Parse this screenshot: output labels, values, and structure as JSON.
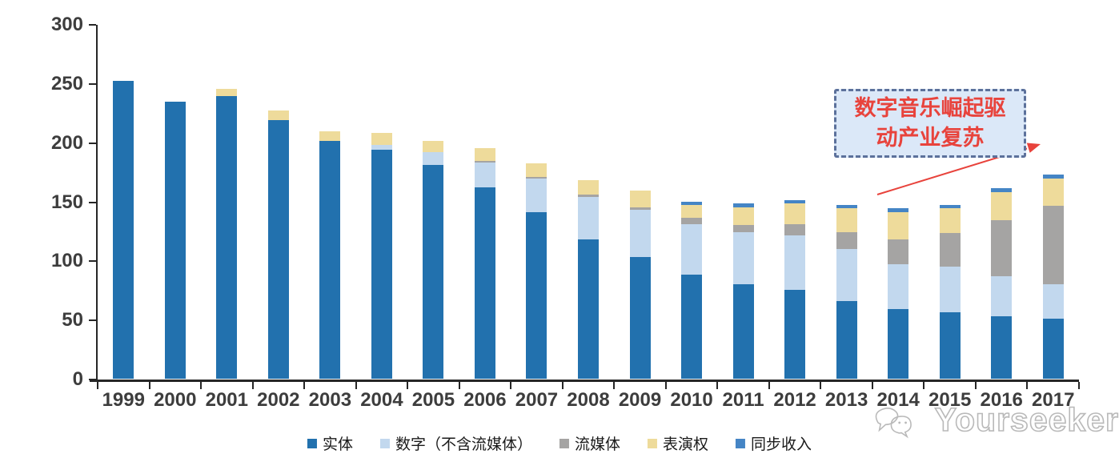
{
  "chart_data": {
    "type": "bar",
    "stacked": true,
    "title": "",
    "xlabel": "",
    "ylabel": "",
    "ylim": [
      0,
      300
    ],
    "yticks": [
      0,
      50,
      100,
      150,
      200,
      250,
      300
    ],
    "grid": false,
    "legend_position": "bottom",
    "categories": [
      "1999",
      "2000",
      "2001",
      "2002",
      "2003",
      "2004",
      "2005",
      "2006",
      "2007",
      "2008",
      "2009",
      "2010",
      "2011",
      "2012",
      "2013",
      "2014",
      "2015",
      "2016",
      "2017"
    ],
    "series": [
      {
        "name": "实体",
        "color": "#2271ae",
        "values": [
          252,
          234,
          239,
          219,
          201,
          194,
          181,
          162,
          141,
          118,
          103,
          88,
          80,
          75,
          66,
          59,
          56,
          53,
          51
        ]
      },
      {
        "name": "数字（不含流媒体）",
        "color": "#c2d8ee",
        "values": [
          0,
          0,
          0,
          0,
          0,
          4,
          11,
          21,
          28,
          36,
          40,
          43,
          44,
          46,
          44,
          38,
          39,
          34,
          29
        ]
      },
      {
        "name": "流媒体",
        "color": "#a5a4a3",
        "values": [
          0,
          0,
          0,
          0,
          0,
          0,
          0,
          1,
          2,
          2,
          2,
          5,
          6,
          10,
          14,
          21,
          28,
          47,
          66
        ]
      },
      {
        "name": "表演权",
        "color": "#eedb9b",
        "values": [
          0,
          0,
          6,
          8,
          8,
          10,
          9,
          11,
          11,
          12,
          14,
          11,
          15,
          17,
          20,
          23,
          21,
          24,
          23
        ]
      },
      {
        "name": "同步收入",
        "color": "#4585c5",
        "values": [
          0,
          0,
          0,
          0,
          0,
          0,
          0,
          0,
          0,
          0,
          0,
          3,
          3,
          3,
          3,
          3,
          3,
          3,
          4
        ]
      }
    ]
  },
  "annotation": {
    "line1": "数字音乐崛起驱",
    "line2": "动产业复苏",
    "text_color": "#e8433c",
    "box_border_color": "#5c719b",
    "box_fill_color": "#dbe8f8",
    "arrow_color": "#e8433c"
  },
  "watermark": {
    "text": "Yourseeker"
  }
}
